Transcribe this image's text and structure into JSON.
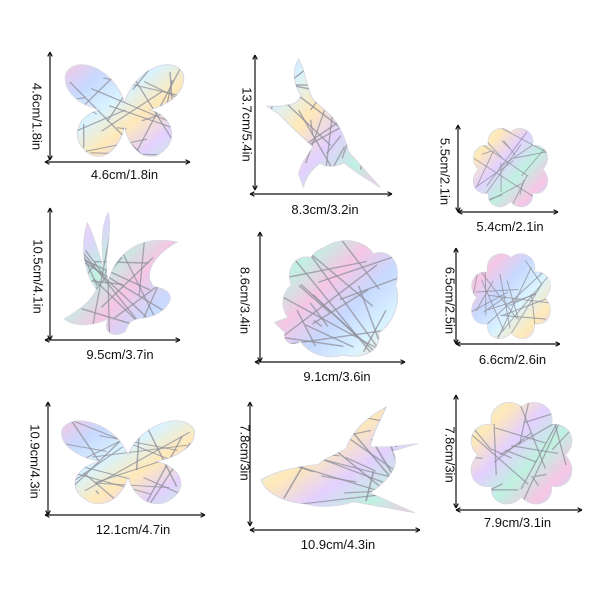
{
  "stickers": [
    {
      "shape": "butterfly-icon",
      "width_label": "4.6cm/1.8in",
      "height_label": "4.6cm/1.8in"
    },
    {
      "shape": "hummingbird-icon",
      "width_label": "8.3cm/3.2in",
      "height_label": "13.7cm/5.4in"
    },
    {
      "shape": "flower-icon",
      "width_label": "5.4cm/2.1in",
      "height_label": "5.5cm/2.1in"
    },
    {
      "shape": "butterfly-side-icon",
      "width_label": "9.5cm/3.7in",
      "height_label": "10.5cm/4.1in"
    },
    {
      "shape": "hibiscus-icon",
      "width_label": "9.1cm/3.6in",
      "height_label": "8.6cm/3.4in"
    },
    {
      "shape": "flower-icon",
      "width_label": "6.6cm/2.6in",
      "height_label": "6.5cm/2.5in"
    },
    {
      "shape": "butterfly-icon",
      "width_label": "12.1cm/4.7in",
      "height_label": "10.9cm/4.3in"
    },
    {
      "shape": "hummingbird-flying-icon",
      "width_label": "10.9cm/4.3in",
      "height_label": "7.8cm/3in"
    },
    {
      "shape": "flower-icon",
      "width_label": "7.9cm/3.1in",
      "height_label": "7.8cm/3in"
    }
  ],
  "colors": {
    "arrow": "#111111",
    "iridescent": [
      "#f6c6e4",
      "#c7d9ff",
      "#d9f3ff",
      "#ffe9b8",
      "#e3d0ff",
      "#bff1e0"
    ],
    "line": "#8f8f99"
  }
}
